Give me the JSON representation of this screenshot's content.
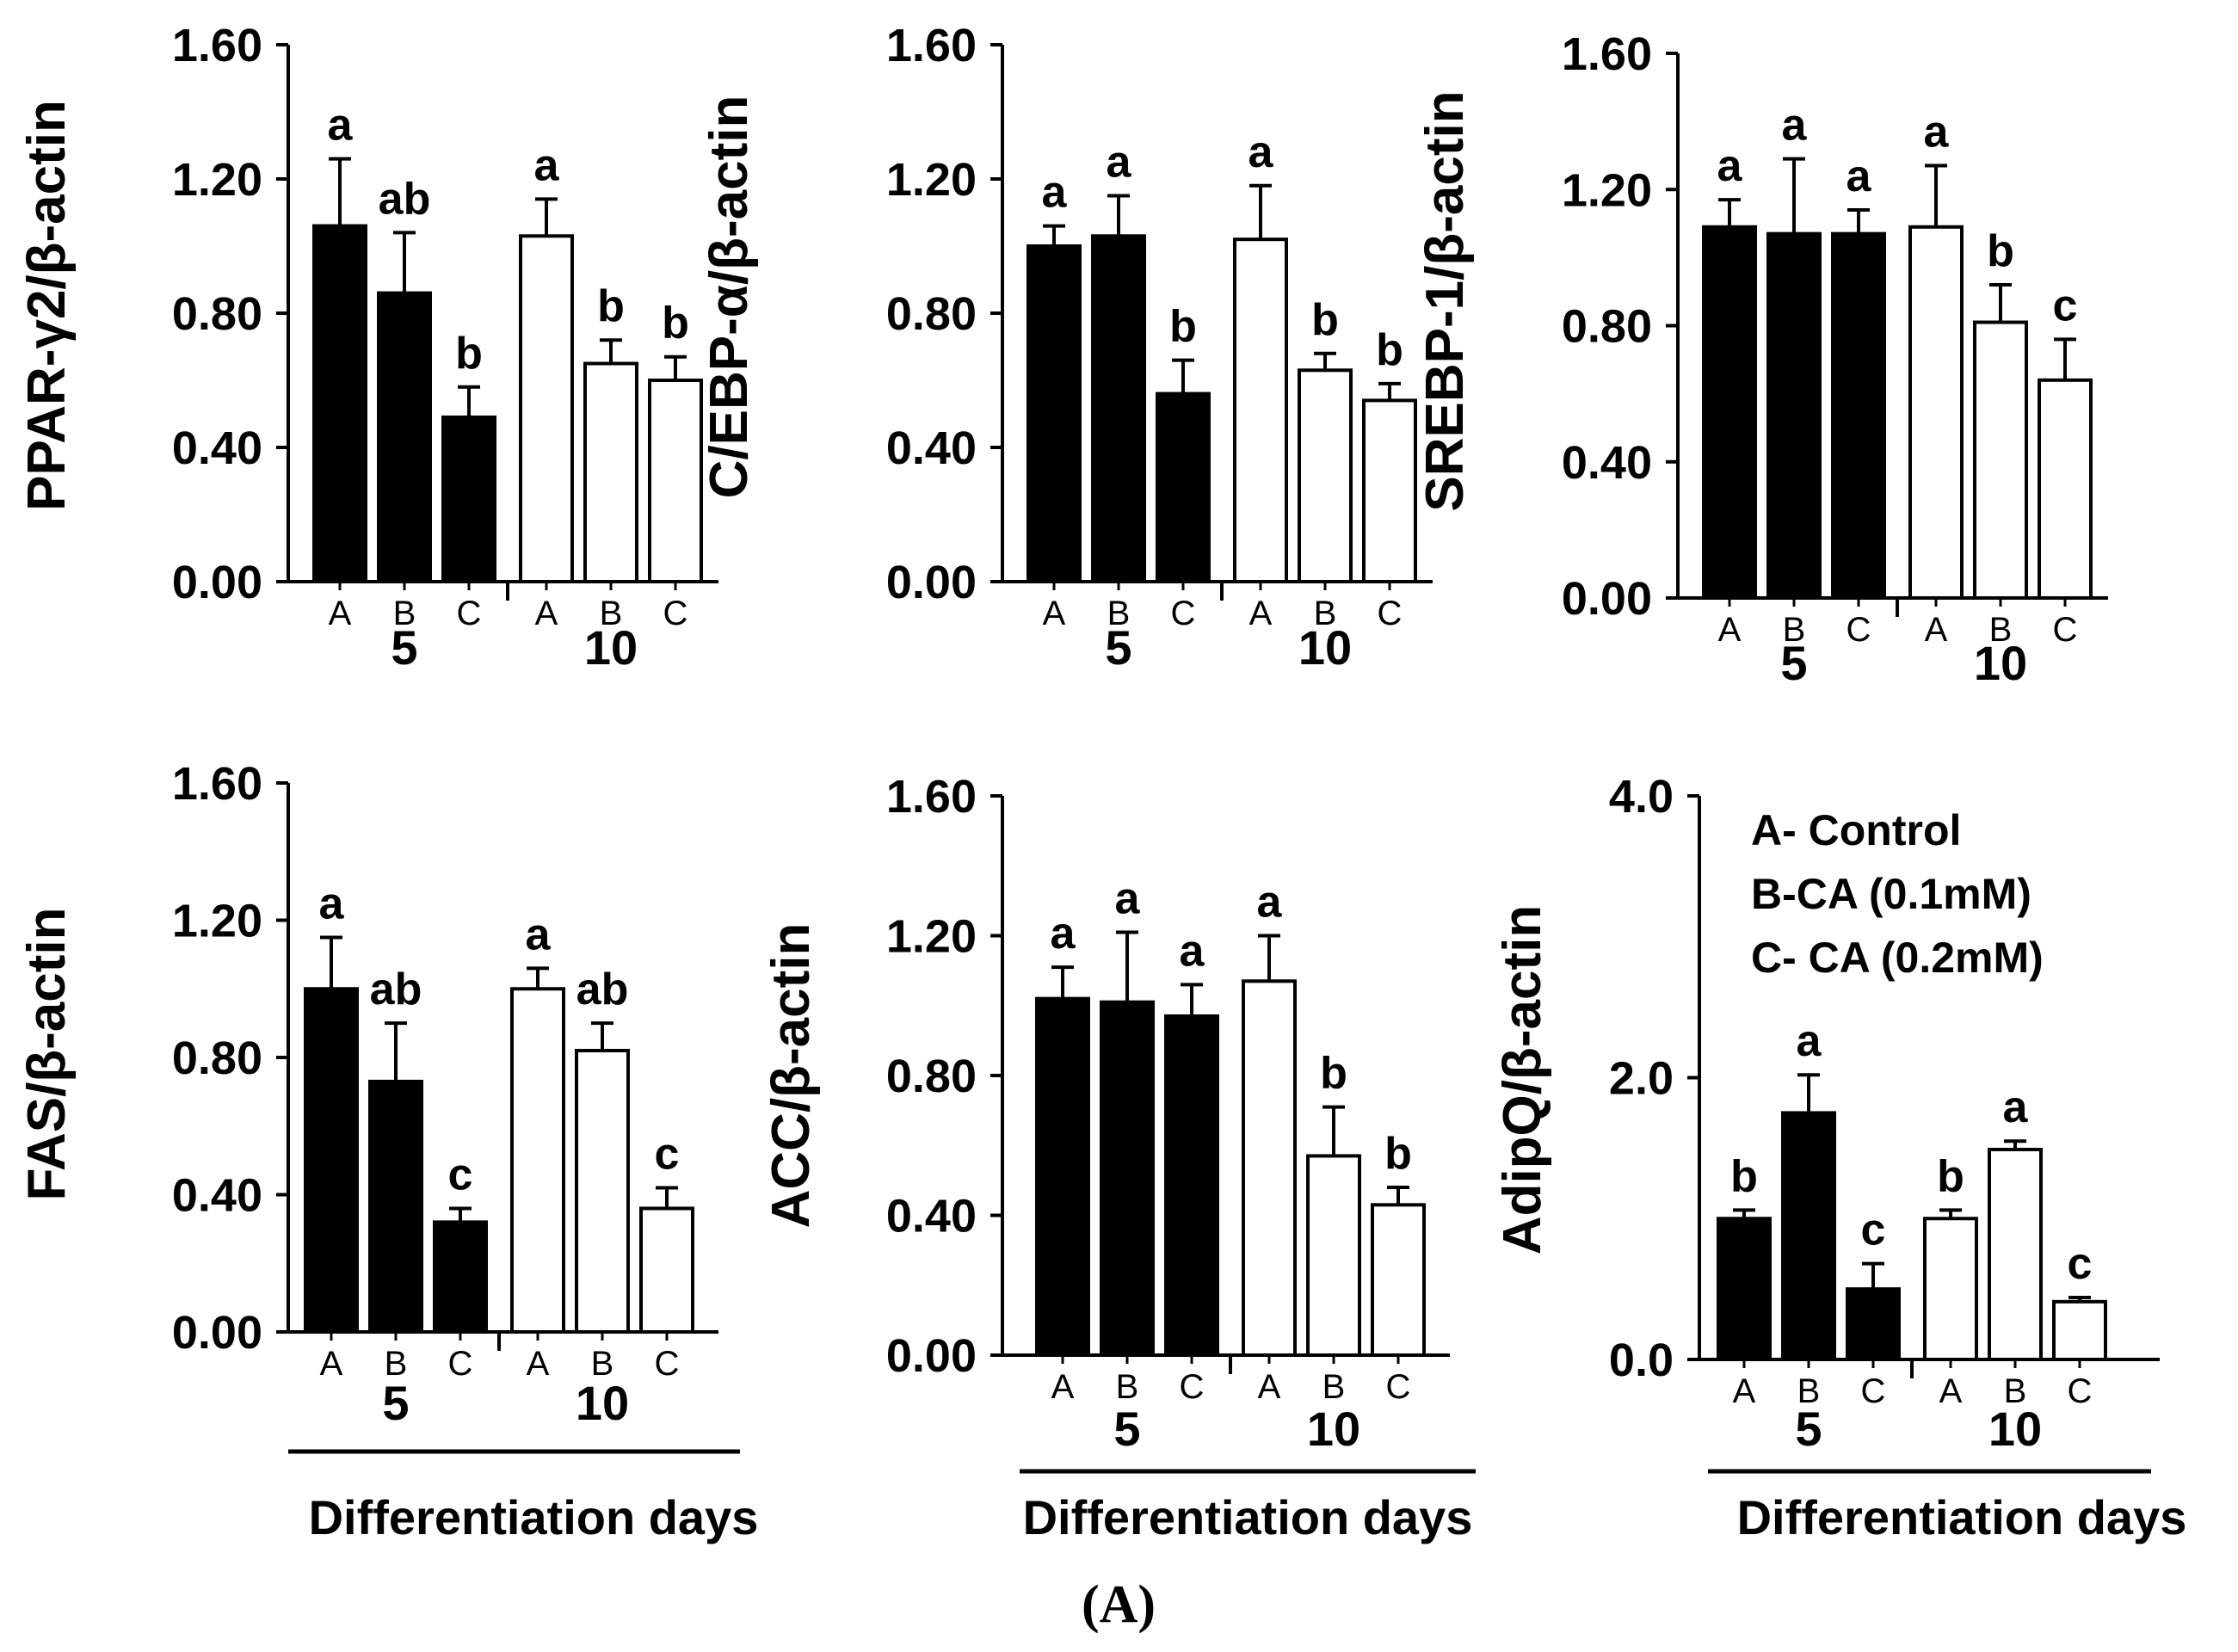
{
  "figure_label": "(A)",
  "colors": {
    "day5_fill": "#000000",
    "day10_fill": "#ffffff",
    "stroke": "#000000"
  },
  "chart_data": [
    {
      "type": "bar",
      "title": "",
      "ylabel": "PPAR-γ2/β-actin",
      "xlabel": "",
      "ylim": [
        0,
        1.6
      ],
      "yticks": [
        "0.00",
        "0.40",
        "0.80",
        "1.20",
        "1.60"
      ],
      "groups": [
        {
          "day": "5",
          "categories": [
            "A",
            "B",
            "C"
          ],
          "values": [
            1.06,
            0.86,
            0.49
          ],
          "errors": [
            0.2,
            0.18,
            0.09
          ],
          "letters": [
            "a",
            "ab",
            "b"
          ]
        },
        {
          "day": "10",
          "categories": [
            "A",
            "B",
            "C"
          ],
          "values": [
            1.03,
            0.65,
            0.6
          ],
          "errors": [
            0.11,
            0.07,
            0.07
          ],
          "letters": [
            "a",
            "b",
            "b"
          ]
        }
      ]
    },
    {
      "type": "bar",
      "title": "",
      "ylabel": "C/EBP-α/β-actin",
      "xlabel": "",
      "ylim": [
        0,
        1.6
      ],
      "yticks": [
        "0.00",
        "0.40",
        "0.80",
        "1.20",
        "1.60"
      ],
      "groups": [
        {
          "day": "5",
          "categories": [
            "A",
            "B",
            "C"
          ],
          "values": [
            1.0,
            1.03,
            0.56
          ],
          "errors": [
            0.06,
            0.12,
            0.1
          ],
          "letters": [
            "a",
            "a",
            "b"
          ]
        },
        {
          "day": "10",
          "categories": [
            "A",
            "B",
            "C"
          ],
          "values": [
            1.02,
            0.63,
            0.54
          ],
          "errors": [
            0.16,
            0.05,
            0.05
          ],
          "letters": [
            "a",
            "b",
            "b"
          ]
        }
      ]
    },
    {
      "type": "bar",
      "title": "",
      "ylabel": "SREBP-1/β-actin",
      "xlabel": "",
      "ylim": [
        0,
        1.6
      ],
      "yticks": [
        "0.00",
        "0.40",
        "0.80",
        "1.20",
        "1.60"
      ],
      "groups": [
        {
          "day": "5",
          "categories": [
            "A",
            "B",
            "C"
          ],
          "values": [
            1.09,
            1.07,
            1.07
          ],
          "errors": [
            0.08,
            0.22,
            0.07
          ],
          "letters": [
            "a",
            "a",
            "a"
          ]
        },
        {
          "day": "10",
          "categories": [
            "A",
            "B",
            "C"
          ],
          "values": [
            1.09,
            0.81,
            0.64
          ],
          "errors": [
            0.18,
            0.11,
            0.12
          ],
          "letters": [
            "a",
            "b",
            "c"
          ]
        }
      ]
    },
    {
      "type": "bar",
      "title": "",
      "ylabel": "FAS/β-actin",
      "xlabel": "Differentiation days",
      "ylim": [
        0,
        1.6
      ],
      "yticks": [
        "0.00",
        "0.40",
        "0.80",
        "1.20",
        "1.60"
      ],
      "groups": [
        {
          "day": "5",
          "categories": [
            "A",
            "B",
            "C"
          ],
          "values": [
            1.0,
            0.73,
            0.32
          ],
          "errors": [
            0.15,
            0.17,
            0.04
          ],
          "letters": [
            "a",
            "ab",
            "c"
          ]
        },
        {
          "day": "10",
          "categories": [
            "A",
            "B",
            "C"
          ],
          "values": [
            1.0,
            0.82,
            0.36
          ],
          "errors": [
            0.06,
            0.08,
            0.06
          ],
          "letters": [
            "a",
            "ab",
            "c"
          ]
        }
      ]
    },
    {
      "type": "bar",
      "title": "",
      "ylabel": "ACC/β-actin",
      "xlabel": "Differentiation days",
      "ylim": [
        0,
        1.6
      ],
      "yticks": [
        "0.00",
        "0.40",
        "0.80",
        "1.20",
        "1.60"
      ],
      "groups": [
        {
          "day": "5",
          "categories": [
            "A",
            "B",
            "C"
          ],
          "values": [
            1.02,
            1.01,
            0.97
          ],
          "errors": [
            0.09,
            0.2,
            0.09
          ],
          "letters": [
            "a",
            "a",
            "a"
          ]
        },
        {
          "day": "10",
          "categories": [
            "A",
            "B",
            "C"
          ],
          "values": [
            1.07,
            0.57,
            0.43
          ],
          "errors": [
            0.13,
            0.14,
            0.05
          ],
          "letters": [
            "a",
            "b",
            "b"
          ]
        }
      ]
    },
    {
      "type": "bar",
      "title": "",
      "ylabel": "AdipQ/β-actin",
      "xlabel": "Differentiation days",
      "ylim": [
        0,
        4.0
      ],
      "yticks": [
        "0.0",
        "2.0",
        "4.0"
      ],
      "groups": [
        {
          "day": "5",
          "categories": [
            "A",
            "B",
            "C"
          ],
          "values": [
            1.0,
            1.75,
            0.5
          ],
          "errors": [
            0.06,
            0.27,
            0.18
          ],
          "letters": [
            "b",
            "a",
            "c"
          ]
        },
        {
          "day": "10",
          "categories": [
            "A",
            "B",
            "C"
          ],
          "values": [
            1.0,
            1.49,
            0.41
          ],
          "errors": [
            0.06,
            0.06,
            0.03
          ],
          "letters": [
            "b",
            "a",
            "c"
          ]
        }
      ],
      "legend": [
        "A- Control",
        "B-CA (0.1mM)",
        "C- CA (0.2mM)"
      ]
    }
  ]
}
